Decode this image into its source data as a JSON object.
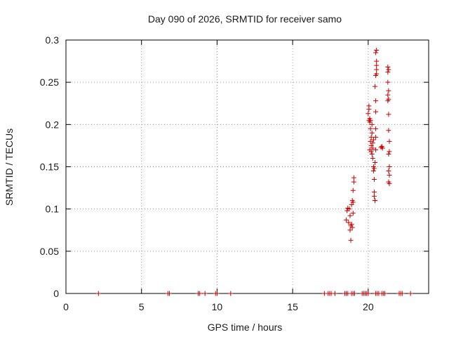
{
  "chart_data": {
    "type": "scatter",
    "title": "Day 090 of 2026, SRMTID for receiver samo",
    "xlabel": "GPS time / hours",
    "ylabel": "SRMTID / TECUs",
    "xlim": [
      0,
      24
    ],
    "ylim": [
      0,
      0.3
    ],
    "x_ticks": [
      0,
      5,
      10,
      15,
      20
    ],
    "y_ticks": [
      0,
      0.05,
      0.1,
      0.15,
      0.2,
      0.25,
      0.3
    ],
    "x_tick_labels": [
      "0",
      "5",
      "10",
      "15",
      "20"
    ],
    "y_tick_labels": [
      "0",
      "0.05",
      "0.1",
      "0.15",
      "0.2",
      "0.25",
      "0.3"
    ],
    "grid": true,
    "marker": "+",
    "marker_color": "#cc0000",
    "series": [
      {
        "points": [
          [
            2.15,
            0
          ],
          [
            6.75,
            0
          ],
          [
            6.85,
            0
          ],
          [
            8.75,
            0
          ],
          [
            8.85,
            0
          ],
          [
            9.2,
            0
          ],
          [
            9.9,
            0
          ],
          [
            10.0,
            0
          ],
          [
            10.9,
            0
          ],
          [
            17.1,
            0
          ],
          [
            17.35,
            0
          ],
          [
            17.45,
            0
          ],
          [
            17.55,
            0
          ],
          [
            17.8,
            0
          ],
          [
            18.45,
            0
          ],
          [
            18.55,
            0
          ],
          [
            18.65,
            0
          ],
          [
            18.9,
            0
          ],
          [
            19.0,
            0
          ],
          [
            19.1,
            0
          ],
          [
            19.6,
            0
          ],
          [
            19.7,
            0
          ],
          [
            19.8,
            0
          ],
          [
            19.9,
            0
          ],
          [
            20.0,
            0
          ],
          [
            20.5,
            0
          ],
          [
            20.6,
            0
          ],
          [
            20.7,
            0
          ],
          [
            20.9,
            0
          ],
          [
            21.0,
            0
          ],
          [
            21.1,
            0
          ],
          [
            22.05,
            0
          ],
          [
            22.15,
            0
          ],
          [
            22.25,
            0
          ],
          [
            22.8,
            0
          ],
          [
            18.55,
            0.087
          ],
          [
            18.6,
            0.098
          ],
          [
            18.65,
            0.101
          ],
          [
            18.7,
            0.084
          ],
          [
            18.75,
            0.1
          ],
          [
            18.8,
            0.092
          ],
          [
            18.8,
            0.075
          ],
          [
            18.85,
            0.063
          ],
          [
            18.85,
            0.08
          ],
          [
            18.9,
            0.082
          ],
          [
            18.9,
            0.105
          ],
          [
            18.95,
            0.11
          ],
          [
            18.95,
            0.078
          ],
          [
            19.0,
            0.095
          ],
          [
            19.0,
            0.108
          ],
          [
            19.0,
            0.122
          ],
          [
            19.05,
            0.132
          ],
          [
            19.05,
            0.137
          ],
          [
            20.0,
            0.213
          ],
          [
            20.05,
            0.218
          ],
          [
            20.05,
            0.222
          ],
          [
            20.05,
            0.205
          ],
          [
            20.1,
            0.203
          ],
          [
            20.1,
            0.207
          ],
          [
            20.1,
            0.17
          ],
          [
            20.15,
            0.18
          ],
          [
            20.15,
            0.195
          ],
          [
            20.15,
            0.205
          ],
          [
            20.2,
            0.175
          ],
          [
            20.2,
            0.168
          ],
          [
            20.2,
            0.185
          ],
          [
            20.25,
            0.2
          ],
          [
            20.25,
            0.19
          ],
          [
            20.25,
            0.165
          ],
          [
            20.3,
            0.178
          ],
          [
            20.3,
            0.172
          ],
          [
            20.3,
            0.16
          ],
          [
            20.35,
            0.182
          ],
          [
            20.35,
            0.145
          ],
          [
            20.35,
            0.15
          ],
          [
            20.4,
            0.135
          ],
          [
            20.4,
            0.148
          ],
          [
            20.4,
            0.12
          ],
          [
            20.4,
            0.115
          ],
          [
            20.45,
            0.11
          ],
          [
            20.45,
            0.11
          ],
          [
            20.45,
            0.155
          ],
          [
            20.5,
            0.17
          ],
          [
            20.5,
            0.185
          ],
          [
            20.5,
            0.195
          ],
          [
            20.5,
            0.215
          ],
          [
            20.5,
            0.228
          ],
          [
            20.45,
            0.245
          ],
          [
            20.5,
            0.258
          ],
          [
            20.55,
            0.26
          ],
          [
            20.55,
            0.265
          ],
          [
            20.55,
            0.27
          ],
          [
            20.55,
            0.275
          ],
          [
            20.5,
            0.285
          ],
          [
            20.55,
            0.288
          ],
          [
            20.85,
            0.173
          ],
          [
            20.9,
            0.174
          ],
          [
            20.95,
            0.172
          ],
          [
            21.3,
            0.268
          ],
          [
            21.3,
            0.262
          ],
          [
            21.35,
            0.265
          ],
          [
            21.3,
            0.25
          ],
          [
            21.35,
            0.24
          ],
          [
            21.3,
            0.235
          ],
          [
            21.35,
            0.23
          ],
          [
            21.3,
            0.228
          ],
          [
            21.35,
            0.212
          ],
          [
            21.35,
            0.193
          ],
          [
            21.4,
            0.18
          ],
          [
            21.4,
            0.168
          ],
          [
            21.35,
            0.165
          ],
          [
            21.4,
            0.15
          ],
          [
            21.35,
            0.145
          ],
          [
            21.4,
            0.14
          ],
          [
            21.35,
            0.132
          ],
          [
            21.4,
            0.13
          ]
        ]
      }
    ]
  }
}
